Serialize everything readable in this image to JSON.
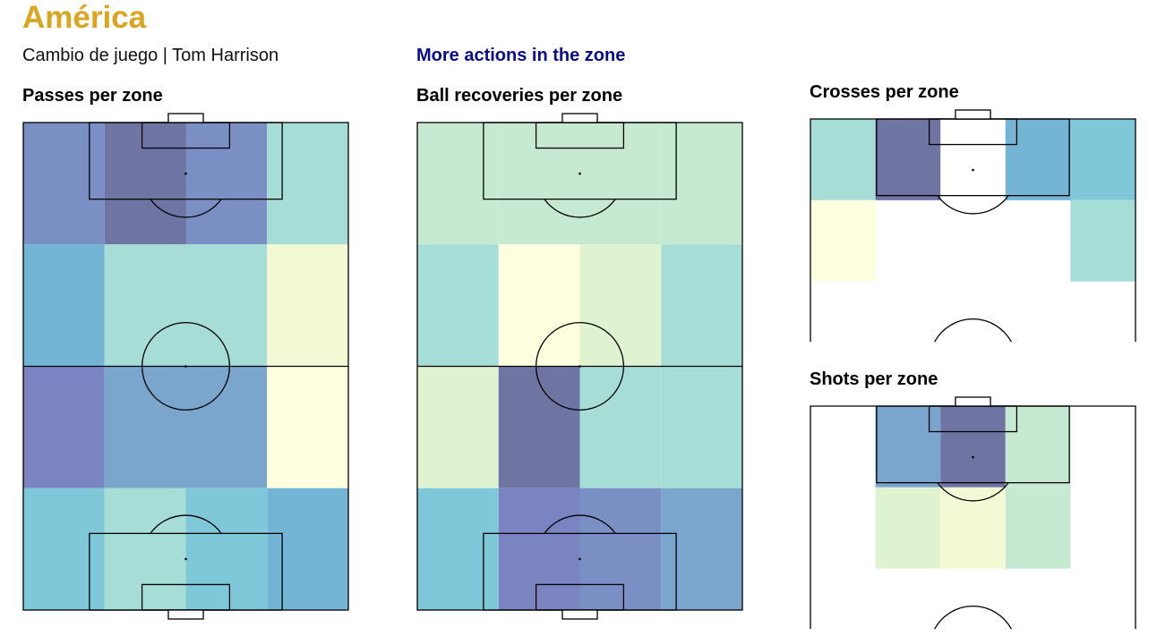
{
  "header": {
    "title": "América",
    "subtitle": "Cambio de juego | Tom Harrison",
    "link": "More actions in the zone"
  },
  "colors": {
    "title": "#DAA520",
    "link": "#0B0B8C",
    "scale": [
      "#FFFFE0",
      "#F3F9D4",
      "#E0F3D0",
      "#C6E9D1",
      "#A6DDD6",
      "#7FC8DA",
      "#74B5D6",
      "#7AA6CE",
      "#7A8FC4",
      "#7A84C0",
      "#6F75A2"
    ]
  },
  "chart_data": [
    {
      "type": "heatmap",
      "title": "Passes per zone",
      "view": "full-pitch",
      "grid": {
        "rows": 4,
        "cols": 4
      },
      "values": [
        [
          8,
          10,
          8,
          4
        ],
        [
          6,
          4,
          4,
          1
        ],
        [
          9,
          7,
          7,
          0
        ],
        [
          5,
          4,
          5,
          6
        ]
      ]
    },
    {
      "type": "heatmap",
      "title": "Ball recoveries per zone",
      "view": "full-pitch",
      "grid": {
        "rows": 4,
        "cols": 4
      },
      "values": [
        [
          3,
          3,
          3,
          3
        ],
        [
          4,
          0,
          2,
          4
        ],
        [
          2,
          10,
          4,
          4
        ],
        [
          5,
          9,
          8,
          7
        ]
      ]
    },
    {
      "type": "heatmap",
      "title": "Crosses per zone",
      "view": "attacking-third",
      "grid": {
        "rows": 2,
        "cols": 5
      },
      "values": [
        [
          4,
          10,
          null,
          6,
          5
        ],
        [
          0,
          null,
          null,
          null,
          4
        ]
      ]
    },
    {
      "type": "heatmap",
      "title": "Shots per zone",
      "view": "attacking-third",
      "grid": {
        "rows": 2,
        "cols": 5
      },
      "values": [
        [
          null,
          7,
          10,
          3,
          null
        ],
        [
          null,
          2,
          1,
          3,
          null
        ]
      ]
    }
  ]
}
